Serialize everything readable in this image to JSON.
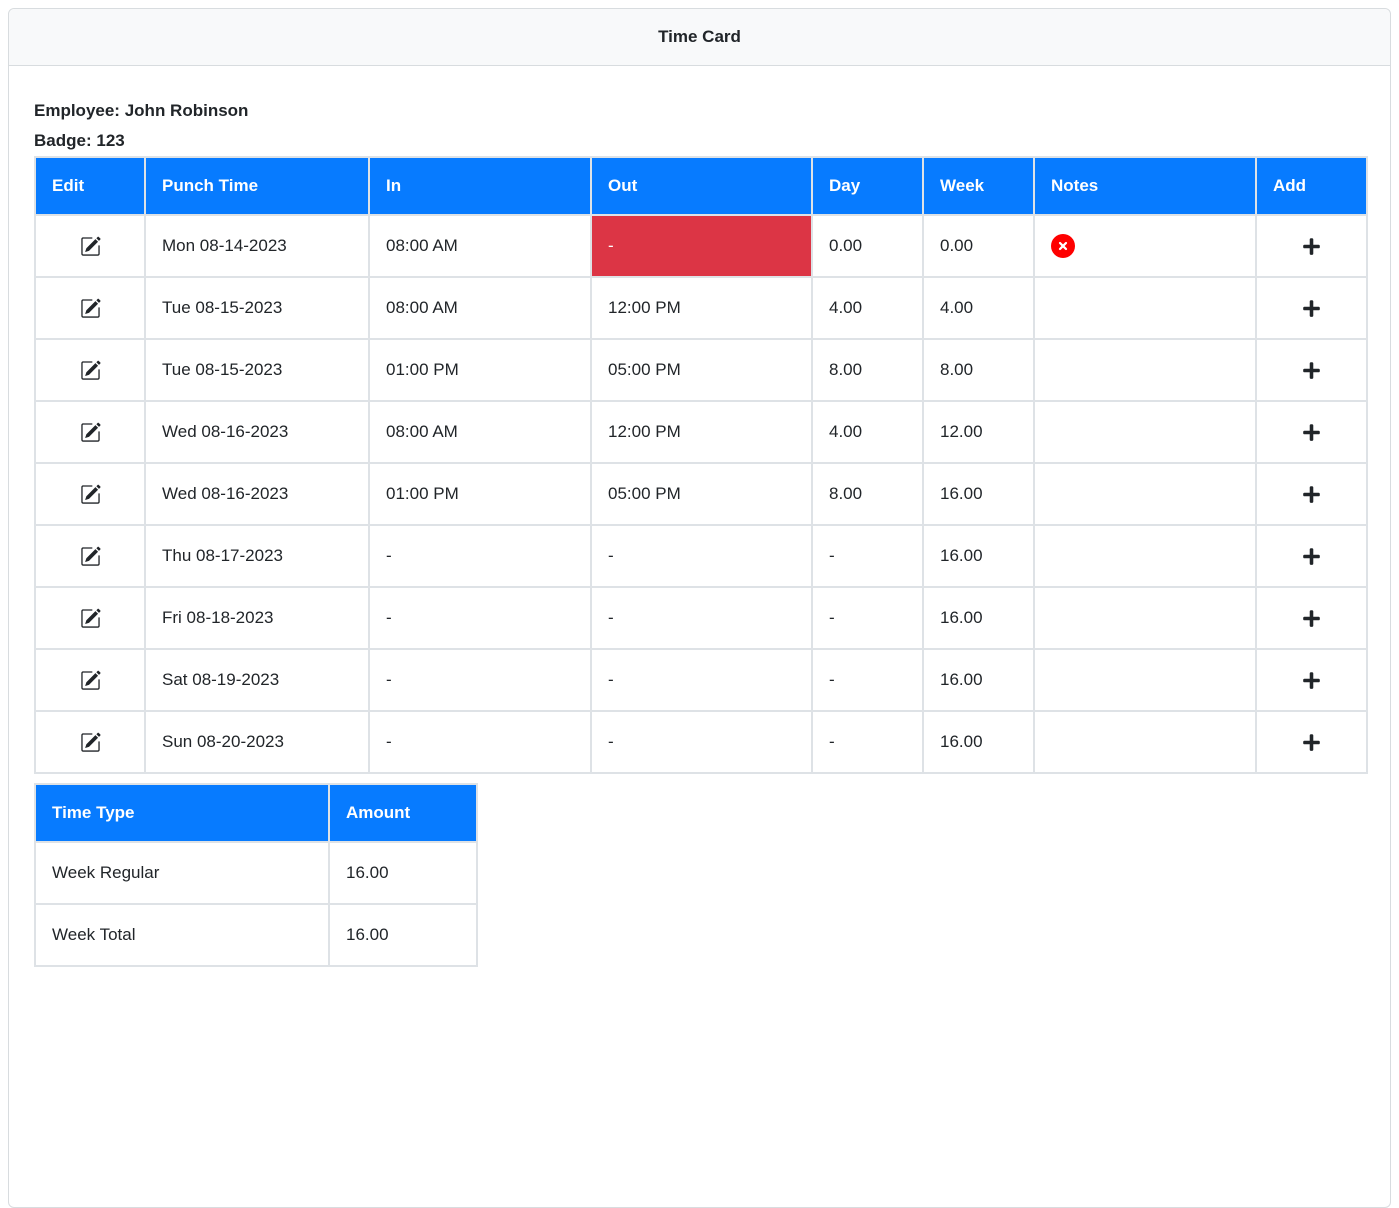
{
  "app": {
    "title": "Time Card"
  },
  "employee": {
    "name_label": "Employee:",
    "name": "John Robinson",
    "badge_label": "Badge:",
    "badge": "123"
  },
  "timecard": {
    "columns": [
      "Edit",
      "Punch Time",
      "In",
      "Out",
      "Day",
      "Week",
      "Notes",
      "Add"
    ],
    "rows": [
      {
        "punch_time": "Mon 08-14-2023",
        "in": "08:00 AM",
        "out": "-",
        "day": "0.00",
        "week": "0.00",
        "out_missing": true,
        "note_error": true
      },
      {
        "punch_time": "Tue 08-15-2023",
        "in": "08:00 AM",
        "out": "12:00 PM",
        "day": "4.00",
        "week": "4.00",
        "out_missing": false,
        "note_error": false
      },
      {
        "punch_time": "Tue 08-15-2023",
        "in": "01:00 PM",
        "out": "05:00 PM",
        "day": "8.00",
        "week": "8.00",
        "out_missing": false,
        "note_error": false
      },
      {
        "punch_time": "Wed 08-16-2023",
        "in": "08:00 AM",
        "out": "12:00 PM",
        "day": "4.00",
        "week": "12.00",
        "out_missing": false,
        "note_error": false
      },
      {
        "punch_time": "Wed 08-16-2023",
        "in": "01:00 PM",
        "out": "05:00 PM",
        "day": "8.00",
        "week": "16.00",
        "out_missing": false,
        "note_error": false
      },
      {
        "punch_time": "Thu 08-17-2023",
        "in": "-",
        "out": "-",
        "day": "-",
        "week": "16.00",
        "out_missing": false,
        "note_error": false
      },
      {
        "punch_time": "Fri 08-18-2023",
        "in": "-",
        "out": "-",
        "day": "-",
        "week": "16.00",
        "out_missing": false,
        "note_error": false
      },
      {
        "punch_time": "Sat 08-19-2023",
        "in": "-",
        "out": "-",
        "day": "-",
        "week": "16.00",
        "out_missing": false,
        "note_error": false
      },
      {
        "punch_time": "Sun 08-20-2023",
        "in": "-",
        "out": "-",
        "day": "-",
        "week": "16.00",
        "out_missing": false,
        "note_error": false
      }
    ],
    "icons": {
      "edit": "pencil-square",
      "add": "plus",
      "note_error": "x-circle-fill"
    }
  },
  "summary": {
    "columns": [
      "Time Type",
      "Amount"
    ],
    "rows": [
      {
        "type": "Week Regular",
        "amount": "16.00"
      },
      {
        "type": "Week Total",
        "amount": "16.00"
      }
    ]
  },
  "colors": {
    "table_header_bg": "#077bff",
    "danger_cell_bg": "#dc3545",
    "error_icon": "#fe0000",
    "icon": "#212529",
    "border": "#dee2e6",
    "card_header_bg": "#f8f9fa"
  }
}
